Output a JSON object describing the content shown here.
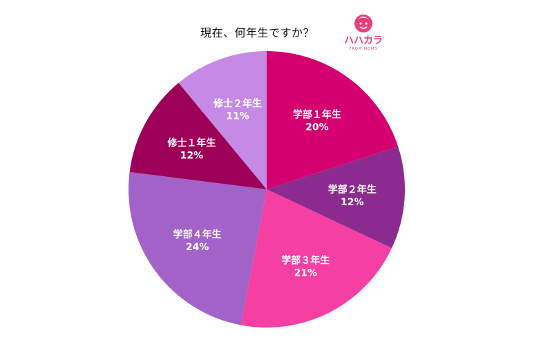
{
  "chart_data": {
    "type": "pie",
    "title": "現在、何年生ですか？",
    "slices": [
      {
        "label": "学部１年生",
        "value": 20,
        "display": "20%",
        "color": "#d4006f"
      },
      {
        "label": "学部２年生",
        "value": 12,
        "display": "12%",
        "color": "#8c2b8f"
      },
      {
        "label": "学部３年生",
        "value": 21,
        "display": "21%",
        "color": "#f53fa2"
      },
      {
        "label": "学部４年生",
        "value": 24,
        "display": "24%",
        "color": "#a262c8"
      },
      {
        "label": "修士１年生",
        "value": 12,
        "display": "12%",
        "color": "#9c0059"
      },
      {
        "label": "修士２年生",
        "value": 11,
        "display": "11%",
        "color": "#c58ae6"
      }
    ],
    "legend": "none"
  },
  "logo": {
    "text": "ハハカラ",
    "subtext": "FROM MOMS",
    "color": "#e5407a"
  }
}
